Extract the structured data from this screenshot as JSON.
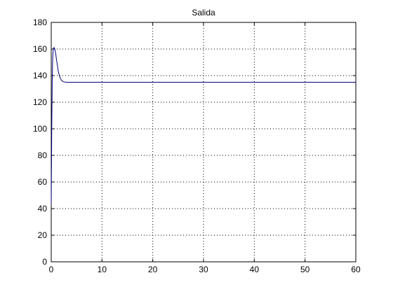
{
  "chart_data": {
    "type": "line",
    "title": "Salida",
    "xlabel": "",
    "ylabel": "",
    "xlim": [
      0,
      60
    ],
    "ylim": [
      0,
      180
    ],
    "xticks": [
      0,
      10,
      20,
      30,
      40,
      50,
      60
    ],
    "yticks": [
      0,
      20,
      40,
      60,
      80,
      100,
      120,
      140,
      160,
      180
    ],
    "grid": true,
    "grid_style": "dotted",
    "series": [
      {
        "color": "#00007f",
        "x": [
          0,
          0.1,
          0.2,
          0.3,
          0.4,
          0.5,
          0.6,
          0.7,
          0.8,
          0.9,
          1.0,
          1.2,
          1.4,
          1.6,
          1.8,
          2.0,
          2.3,
          2.6,
          3.0,
          3.5,
          4.0,
          5,
          10,
          20,
          30,
          40,
          50,
          60
        ],
        "y": [
          43,
          100,
          138,
          155,
          160,
          161,
          161,
          160,
          158,
          156,
          153,
          148,
          143,
          140,
          138,
          136.5,
          135.5,
          135.2,
          135,
          135,
          135,
          135,
          135,
          135,
          135,
          135,
          135,
          135
        ]
      }
    ]
  }
}
